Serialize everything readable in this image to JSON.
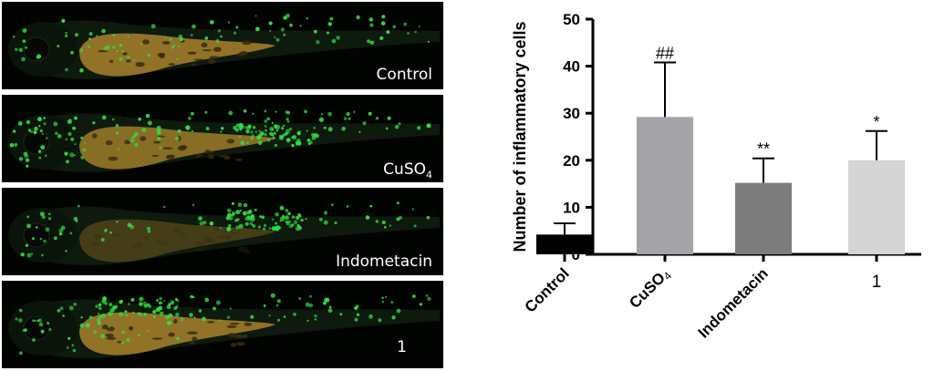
{
  "panels": [
    {
      "label": "Control",
      "sub": ""
    },
    {
      "label": "CuSO",
      "sub": "4"
    },
    {
      "label": "Indometacin",
      "sub": ""
    },
    {
      "label": "1",
      "sub": ""
    }
  ],
  "chart_data": {
    "type": "bar",
    "ylabel": "Number of inflammatory cells",
    "ylim": [
      0,
      50
    ],
    "yticks": [
      0,
      10,
      20,
      30,
      40,
      50
    ],
    "grid": false,
    "categories": [
      {
        "label": "Control",
        "sub": ""
      },
      {
        "label": "CuSO",
        "sub": "4"
      },
      {
        "label": "Indometacin",
        "sub": ""
      },
      {
        "label": "1",
        "sub": ""
      }
    ],
    "values": [
      4.2,
      29.2,
      15.2,
      20.0
    ],
    "errors": [
      2.4,
      11.6,
      5.2,
      6.2
    ],
    "annotations": [
      "",
      "##",
      "**",
      "*"
    ],
    "colors": [
      "#000000",
      "#a3a3a8",
      "#7d7d7d",
      "#d5d5d5"
    ]
  },
  "colors": {
    "cells": "#33dd44",
    "yolk": "#a8822c",
    "panel_bg": "#020402"
  }
}
